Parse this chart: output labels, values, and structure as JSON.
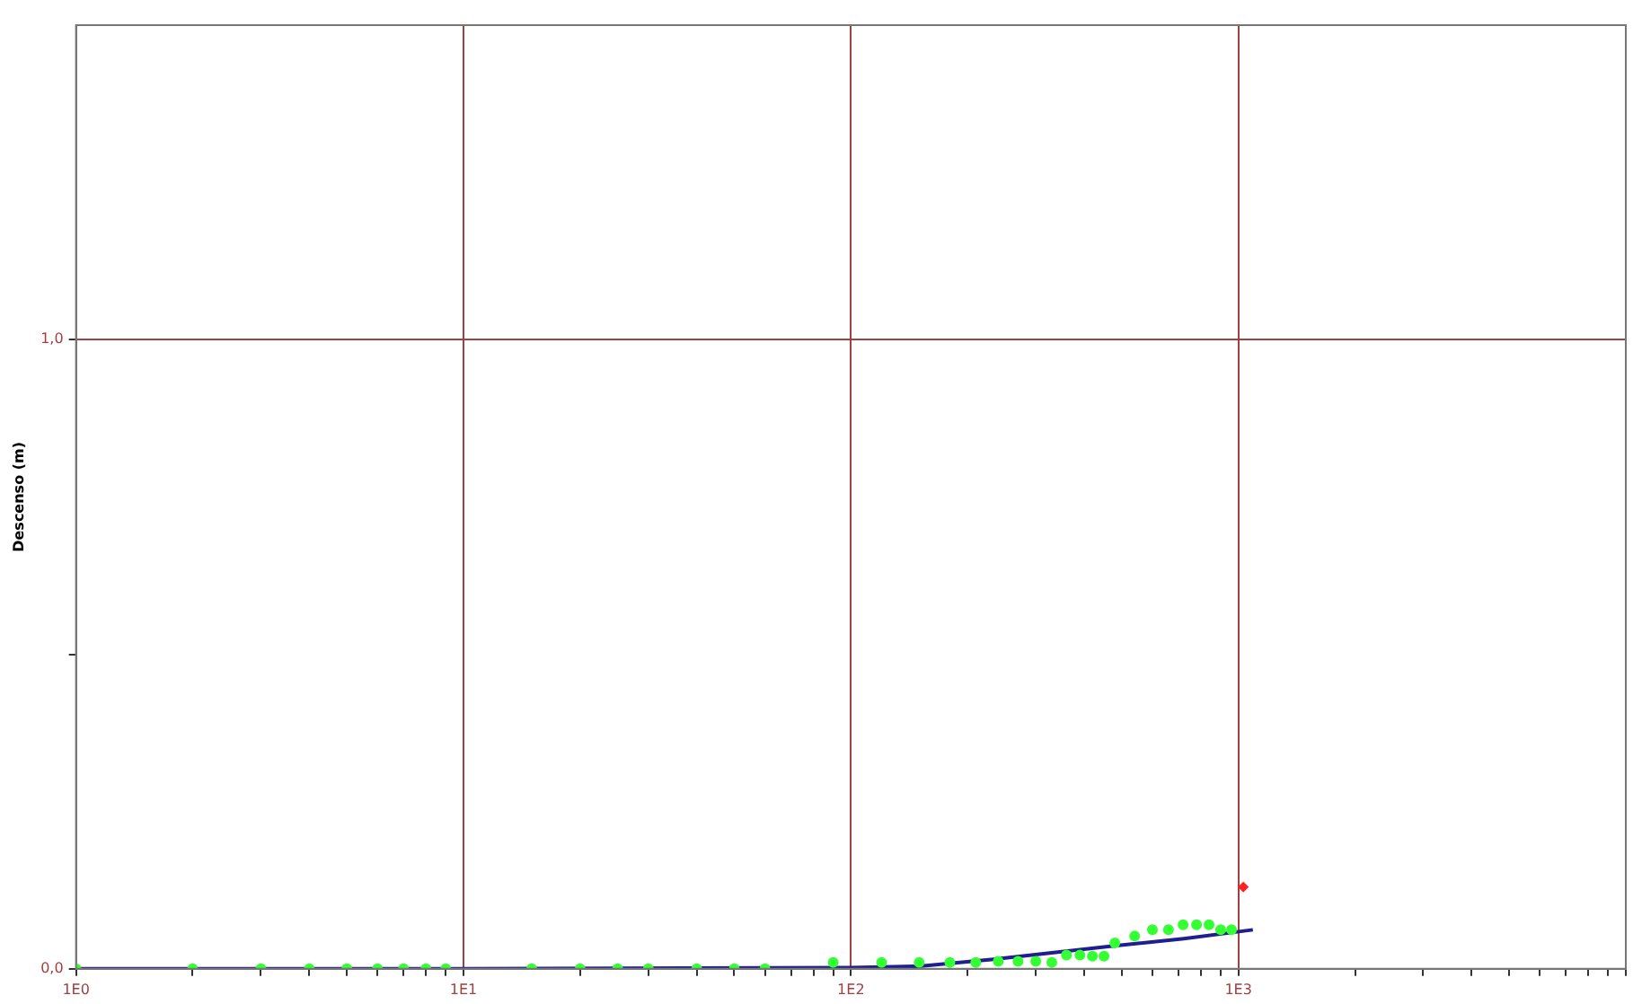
{
  "chart_data": {
    "type": "scatter",
    "ylabel": "Descenso (m)",
    "log": "x",
    "grid": true,
    "legend": false,
    "xlim": [
      1,
      10000
    ],
    "ylim": [
      0,
      1.5
    ],
    "xticks": [
      {
        "value": 1,
        "label": "1E0"
      },
      {
        "value": 2,
        "label": null
      },
      {
        "value": 3,
        "label": null
      },
      {
        "value": 4,
        "label": null
      },
      {
        "value": 5,
        "label": null
      },
      {
        "value": 6,
        "label": null
      },
      {
        "value": 7,
        "label": null
      },
      {
        "value": 8,
        "label": null
      },
      {
        "value": 9,
        "label": null
      },
      {
        "value": 10,
        "label": "1E1"
      },
      {
        "value": 20,
        "label": null
      },
      {
        "value": 30,
        "label": null
      },
      {
        "value": 40,
        "label": null
      },
      {
        "value": 50,
        "label": null
      },
      {
        "value": 60,
        "label": null
      },
      {
        "value": 70,
        "label": null
      },
      {
        "value": 80,
        "label": null
      },
      {
        "value": 90,
        "label": null
      },
      {
        "value": 100,
        "label": "1E2"
      },
      {
        "value": 200,
        "label": null
      },
      {
        "value": 300,
        "label": null
      },
      {
        "value": 400,
        "label": null
      },
      {
        "value": 500,
        "label": null
      },
      {
        "value": 600,
        "label": null
      },
      {
        "value": 700,
        "label": null
      },
      {
        "value": 800,
        "label": null
      },
      {
        "value": 900,
        "label": null
      },
      {
        "value": 1000,
        "label": "1E3"
      },
      {
        "value": 2000,
        "label": null
      },
      {
        "value": 3000,
        "label": null
      },
      {
        "value": 4000,
        "label": null
      },
      {
        "value": 5000,
        "label": null
      },
      {
        "value": 6000,
        "label": null
      },
      {
        "value": 7000,
        "label": null
      },
      {
        "value": 8000,
        "label": null
      },
      {
        "value": 9000,
        "label": null
      },
      {
        "value": 10000,
        "label": null
      }
    ],
    "yticks": [
      {
        "value": 0,
        "label": "0,0"
      },
      {
        "value": 0.5,
        "label": null
      },
      {
        "value": 1,
        "label": "1,0"
      }
    ],
    "series": [
      {
        "marker": "circle",
        "color": "#33ff33",
        "x": [
          1,
          2,
          3,
          4,
          5,
          6,
          7,
          8,
          9,
          15,
          20,
          25,
          30,
          40,
          50,
          60,
          90,
          120,
          150,
          180,
          210,
          240,
          270,
          300,
          330,
          360,
          390,
          420,
          450,
          480,
          540,
          600,
          660,
          720,
          780,
          840,
          900,
          960
        ],
        "values": [
          0,
          0,
          0,
          0,
          0,
          0,
          0,
          0,
          0,
          0,
          0,
          0,
          0,
          0,
          0,
          0,
          0.01,
          0.01,
          0.01,
          0.01,
          0.01,
          0.012,
          0.012,
          0.012,
          0.01,
          0.022,
          0.022,
          0.02,
          0.02,
          0.041,
          0.052,
          0.062,
          0.062,
          0.07,
          0.07,
          0.07,
          0.062,
          0.062
        ]
      },
      {
        "type": "line",
        "marker": "none",
        "line_style": "solid",
        "color": "#1f1f8f",
        "x": [
          1,
          10,
          100,
          150,
          233,
          472,
          723,
          1090
        ],
        "values": [
          0,
          0,
          0.002,
          0.004,
          0.015,
          0.036,
          0.048,
          0.062
        ]
      },
      {
        "marker": "diamond",
        "color": "#ff2020",
        "x": [
          1030
        ],
        "values": [
          0.13
        ]
      }
    ]
  }
}
